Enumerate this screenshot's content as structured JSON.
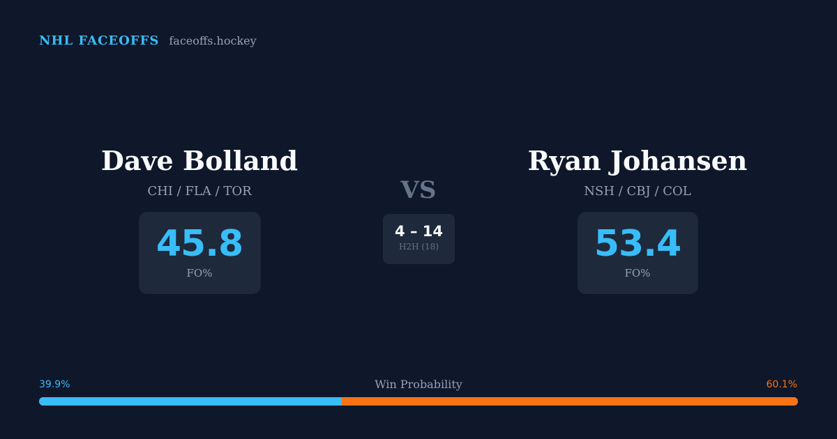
{
  "header": {
    "brand": "NHL FACEOFFS",
    "domain": "faceoffs.hockey"
  },
  "players": {
    "left": {
      "name": "Dave Bolland",
      "teams": "CHI / FLA / TOR",
      "stat_value": "45.8",
      "stat_label": "FO%"
    },
    "right": {
      "name": "Ryan Johansen",
      "teams": "NSH / CBJ / COL",
      "stat_value": "53.4",
      "stat_label": "FO%"
    }
  },
  "versus": {
    "label": "VS",
    "h2h_score": "4 – 14",
    "h2h_label": "H2H (18)"
  },
  "win_probability": {
    "title": "Win Probability",
    "left_label": "39.9%",
    "right_label": "60.1%",
    "left_value": 39.9,
    "right_value": 60.1
  },
  "colors": {
    "background": "#0f172a",
    "card": "#1e293b",
    "accent_blue": "#38bdf8",
    "accent_orange": "#f97316",
    "muted_text": "#94a3b8"
  }
}
